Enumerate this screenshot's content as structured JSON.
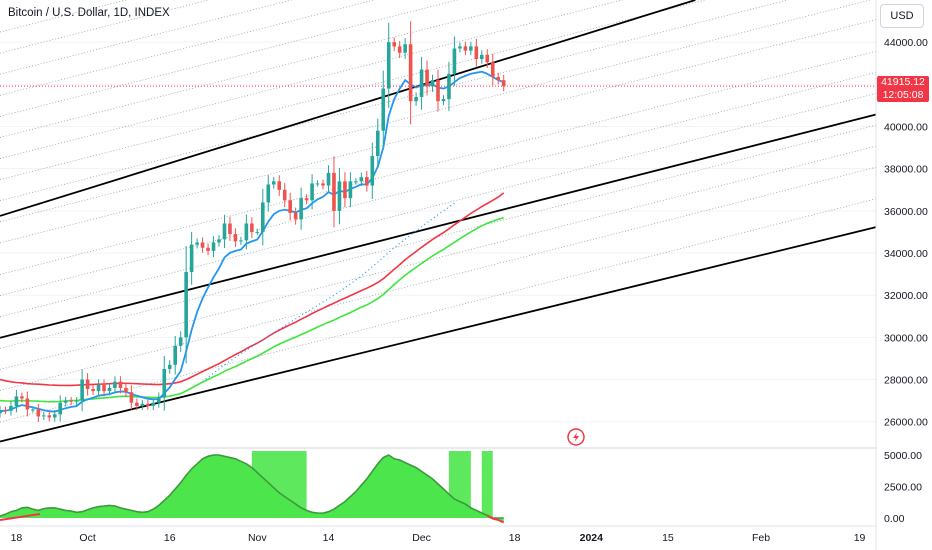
{
  "header": {
    "symbol_title": "Bitcoin / U.S. Dollar, 1D, INDEX",
    "currency_button": "USD"
  },
  "last_price": {
    "value": "41915.12",
    "countdown": "12:05:08",
    "color": "#f23645"
  },
  "colors": {
    "up": "#26a69a",
    "down": "#ef5350",
    "ema_fast": "#2196f3",
    "ema_red": "#f23645",
    "ema_green": "#3ee53e",
    "channel": "#000000",
    "osc_light": "#4ce64c",
    "osc_dark": "#3c9a3c"
  },
  "icons": {
    "replay": "lightning-icon"
  },
  "chart_data": [
    {
      "type": "candlestick",
      "title": "Bitcoin / U.S. Dollar, 1D, INDEX",
      "ylim": [
        24800,
        46000
      ],
      "yticks": [
        26000,
        28000,
        30000,
        32000,
        34000,
        36000,
        38000,
        40000,
        42000,
        44000
      ],
      "ytick_labels": [
        "26000.00",
        "28000.00",
        "30000.00",
        "32000.00",
        "34000.00",
        "36000.00",
        "38000.00",
        "40000.00",
        "",
        "44000.00"
      ],
      "x_start": "2023-09-15",
      "x_end": "2024-02-22",
      "xticks": [
        {
          "label": "18",
          "date": "2023-09-18",
          "bold": false
        },
        {
          "label": "Oct",
          "date": "2023-10-01",
          "bold": false
        },
        {
          "label": "16",
          "date": "2023-10-16",
          "bold": false
        },
        {
          "label": "Nov",
          "date": "2023-11-01",
          "bold": false
        },
        {
          "label": "14",
          "date": "2023-11-14",
          "bold": false
        },
        {
          "label": "Dec",
          "date": "2023-12-01",
          "bold": false
        },
        {
          "label": "18",
          "date": "2023-12-18",
          "bold": false
        },
        {
          "label": "2024",
          "date": "2024-01-01",
          "bold": true
        },
        {
          "label": "15",
          "date": "2024-01-15",
          "bold": false
        },
        {
          "label": "Feb",
          "date": "2024-02-01",
          "bold": false
        },
        {
          "label": "19",
          "date": "2024-02-19",
          "bold": false
        }
      ],
      "candles_start": "2023-09-15",
      "closes": [
        26550,
        26520,
        26750,
        27200,
        27100,
        26580,
        26580,
        26250,
        26300,
        26200,
        26350,
        26900,
        27000,
        26950,
        27000,
        28000,
        27550,
        27450,
        27750,
        27450,
        27600,
        27900,
        27600,
        27400,
        26900,
        26750,
        26850,
        26750,
        26900,
        27150,
        28500,
        28700,
        29600,
        30000,
        33100,
        34400,
        34500,
        34250,
        34100,
        34500,
        34650,
        35400,
        34900,
        34550,
        34600,
        35400,
        35000,
        35000,
        36400,
        37250,
        37400,
        37000,
        36500,
        35900,
        35600,
        36600,
        36500,
        37300,
        37300,
        37200,
        37800,
        36000,
        37400,
        36600,
        37400,
        37400,
        37600,
        37200,
        38600,
        39800,
        41800,
        44000,
        43800,
        43500,
        43900,
        41200,
        41400,
        42700,
        41900,
        42200,
        41200,
        41300,
        42500,
        43700,
        43800,
        43600,
        43800,
        43200,
        43400,
        43050,
        42350,
        42200,
        41915
      ],
      "ema_fast_start": "2023-09-15",
      "ema_fast": [
        26500,
        26520,
        26570,
        26700,
        26790,
        26730,
        26680,
        26610,
        26540,
        26500,
        26480,
        26560,
        26640,
        26700,
        26740,
        26950,
        27060,
        27140,
        27240,
        27270,
        27310,
        27390,
        27430,
        27420,
        27320,
        27230,
        27160,
        27090,
        27060,
        27070,
        27350,
        27620,
        28020,
        28400,
        29340,
        30350,
        31200,
        31850,
        32360,
        32850,
        33270,
        33790,
        34010,
        34100,
        34160,
        34450,
        34550,
        34640,
        35030,
        35490,
        35840,
        36000,
        36050,
        36000,
        35920,
        36050,
        36120,
        36360,
        36550,
        36660,
        36890,
        36760,
        36950,
        36900,
        37040,
        37140,
        37260,
        37250,
        37550,
        38100,
        39000,
        40500,
        41300,
        41800,
        42200,
        42000,
        41850,
        41950,
        41950,
        42000,
        41850,
        41800,
        41900,
        42100,
        42300,
        42400,
        42500,
        42550,
        42600,
        42500,
        42350,
        42200,
        42100
      ],
      "ema_red_start": "2023-09-15",
      "ema_red": [
        28000,
        27940,
        27890,
        27860,
        27840,
        27800,
        27790,
        27780,
        27760,
        27740,
        27730,
        27720,
        27720,
        27720,
        27730,
        27750,
        27760,
        27770,
        27780,
        27790,
        27800,
        27810,
        27820,
        27820,
        27810,
        27800,
        27790,
        27780,
        27770,
        27760,
        27780,
        27800,
        27840,
        27890,
        28000,
        28120,
        28250,
        28380,
        28500,
        28630,
        28750,
        28900,
        29040,
        29180,
        29310,
        29460,
        29600,
        29730,
        29880,
        30040,
        30200,
        30340,
        30470,
        30600,
        30720,
        30860,
        30990,
        31130,
        31260,
        31380,
        31510,
        31620,
        31750,
        31860,
        31980,
        32100,
        32220,
        32330,
        32460,
        32600,
        32780,
        33000,
        33230,
        33450,
        33680,
        33880,
        34070,
        34270,
        34460,
        34640,
        34810,
        34970,
        35150,
        35340,
        35520,
        35700,
        35880,
        36040,
        36200,
        36350,
        36500,
        36650,
        36850
      ],
      "ema_green_start": "2023-09-15",
      "ema_green": [
        27000,
        26980,
        26980,
        26990,
        27000,
        26990,
        26980,
        26970,
        26960,
        26950,
        26950,
        26960,
        26980,
        27000,
        27010,
        27040,
        27060,
        27080,
        27110,
        27130,
        27150,
        27180,
        27200,
        27210,
        27200,
        27180,
        27170,
        27160,
        27150,
        27150,
        27180,
        27210,
        27270,
        27330,
        27460,
        27600,
        27740,
        27880,
        28000,
        28130,
        28250,
        28390,
        28510,
        28620,
        28740,
        28870,
        28990,
        29110,
        29250,
        29400,
        29550,
        29680,
        29800,
        29910,
        30010,
        30130,
        30240,
        30370,
        30490,
        30600,
        30720,
        30820,
        30950,
        31060,
        31180,
        31300,
        31430,
        31540,
        31680,
        31840,
        32030,
        32270,
        32500,
        32730,
        32950,
        33140,
        33320,
        33510,
        33690,
        33860,
        34020,
        34170,
        34340,
        34510,
        34680,
        34840,
        35000,
        35150,
        35290,
        35410,
        35510,
        35600,
        35680
      ],
      "ema_dotted_start": "2023-10-22",
      "ema_dotted": [
        27900,
        28100,
        28300,
        28500,
        28700,
        28870,
        29050,
        29220,
        29390,
        29550,
        29720,
        29880,
        30050,
        30220,
        30390,
        30560,
        30720,
        30880,
        31040,
        31200,
        31360,
        31520,
        31680,
        31840,
        32000,
        32170,
        32350,
        32530,
        32720,
        32920,
        33130,
        33350,
        33570,
        33800,
        34030,
        34250,
        34460,
        34660,
        34860,
        35060,
        35250,
        35440,
        35630,
        35820,
        36000,
        36180,
        36360
      ],
      "channel_lines": [
        {
          "from": [
            "2023-09-15",
            35760
          ],
          "to": [
            "2024-01-20",
            46000
          ]
        },
        {
          "from": [
            "2023-09-15",
            29980
          ],
          "to": [
            "2024-02-22",
            40570
          ]
        },
        {
          "from": [
            "2023-09-15",
            25060
          ],
          "to": [
            "2024-02-22",
            35230
          ]
        }
      ],
      "fan_offsets": [
        -4000,
        -2500,
        -1500,
        -500,
        1000,
        2000,
        3000,
        4500,
        5500,
        6500,
        7500,
        8500,
        9500,
        10500,
        11500,
        12500,
        13500,
        14500
      ],
      "fan_base": {
        "from": [
          "2023-09-15",
          29980
        ],
        "to": [
          "2024-02-22",
          40570
        ]
      }
    },
    {
      "type": "area",
      "ylim": [
        0,
        5000
      ],
      "yticks": [
        0,
        2500,
        5000
      ],
      "ytick_labels": [
        "0.00",
        "2500.00",
        "5000.00"
      ],
      "start": "2023-09-15",
      "values": [
        150,
        300,
        500,
        600,
        800,
        850,
        700,
        600,
        750,
        800,
        800,
        700,
        600,
        550,
        450,
        500,
        650,
        800,
        900,
        950,
        1000,
        950,
        800,
        700,
        600,
        500,
        450,
        500,
        700,
        1000,
        1400,
        1800,
        2300,
        2800,
        3400,
        3900,
        4300,
        4700,
        4900,
        5000,
        5000,
        4900,
        4800,
        4700,
        4500,
        4300,
        4000,
        3600,
        3200,
        2800,
        2400,
        2000,
        1700,
        1400,
        1100,
        800,
        600,
        450,
        400,
        380,
        500,
        700,
        1000,
        1300,
        1700,
        2100,
        2600,
        3100,
        3700,
        4300,
        4800,
        5000,
        4700,
        4600,
        4400,
        4200,
        4000,
        3700,
        3400,
        3100,
        2700,
        2300,
        1900,
        1500,
        1300,
        1100,
        800,
        600,
        400,
        200,
        -50,
        -150,
        -350
      ],
      "highlight_ranges": [
        [
          "2023-10-31",
          "2023-11-10"
        ],
        [
          "2023-12-06",
          "2023-12-10"
        ],
        [
          "2023-12-12",
          "2023-12-14"
        ]
      ]
    }
  ]
}
